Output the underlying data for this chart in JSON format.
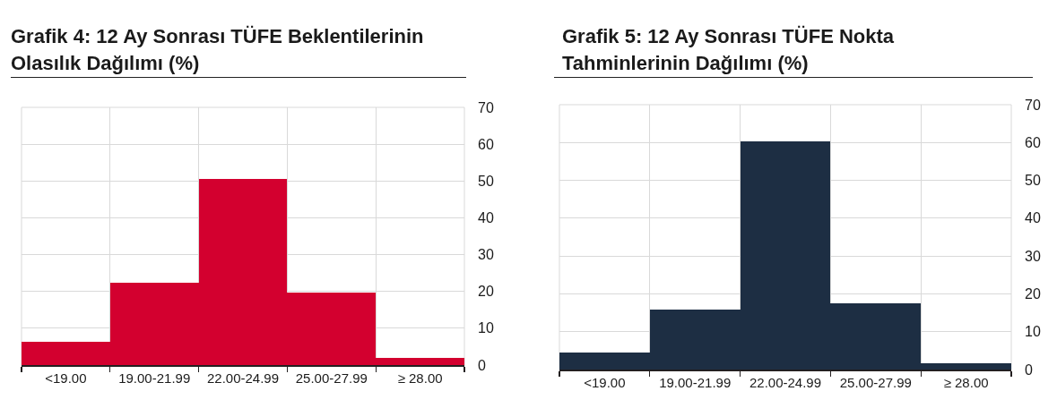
{
  "chart_data": [
    {
      "type": "bar",
      "title": "Grafik 4: 12 Ay Sonrası TÜFE Beklentilerinin Olasılık Dağılımı (%)",
      "categories": [
        "<19.00",
        "19.00-21.99",
        "22.00-24.99",
        "25.00-27.99",
        "≥ 28.00"
      ],
      "values": [
        6.4,
        22.4,
        50.5,
        19.8,
        2.0
      ],
      "color": "#d3002f",
      "ylim": [
        0,
        70
      ],
      "yticks": [
        0,
        10,
        20,
        30,
        40,
        50,
        60,
        70
      ],
      "grid": true
    },
    {
      "type": "bar",
      "title": "Grafik 5: 12 Ay Sonrası TÜFE Nokta Tahminlerinin Dağılımı (%)",
      "categories": [
        "<19.00",
        "19.00-21.99",
        "22.00-24.99",
        "25.00-27.99",
        "≥ 28.00"
      ],
      "values": [
        4.6,
        15.8,
        60.4,
        17.5,
        1.6
      ],
      "color": "#1d2e43",
      "ylim": [
        0,
        70
      ],
      "yticks": [
        0,
        10,
        20,
        30,
        40,
        50,
        60,
        70
      ],
      "grid": true
    }
  ]
}
